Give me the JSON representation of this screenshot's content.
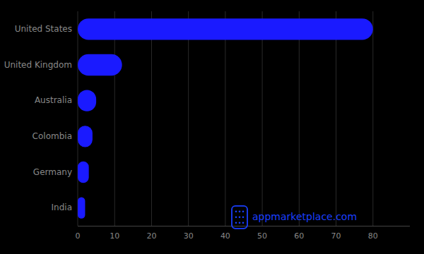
{
  "chart_data": {
    "type": "bar",
    "orientation": "horizontal",
    "categories": [
      "India",
      "Germany",
      "Colombia",
      "Australia",
      "United Kingdom",
      "United States"
    ],
    "values": [
      2,
      3,
      4,
      5,
      12,
      80
    ],
    "color": "#1a1aff",
    "xlim": [
      0,
      90
    ],
    "xticks": [
      0,
      10,
      20,
      30,
      40,
      50,
      60,
      70,
      80
    ],
    "grid": true,
    "annotations": [
      "appmarketplace.com"
    ]
  }
}
